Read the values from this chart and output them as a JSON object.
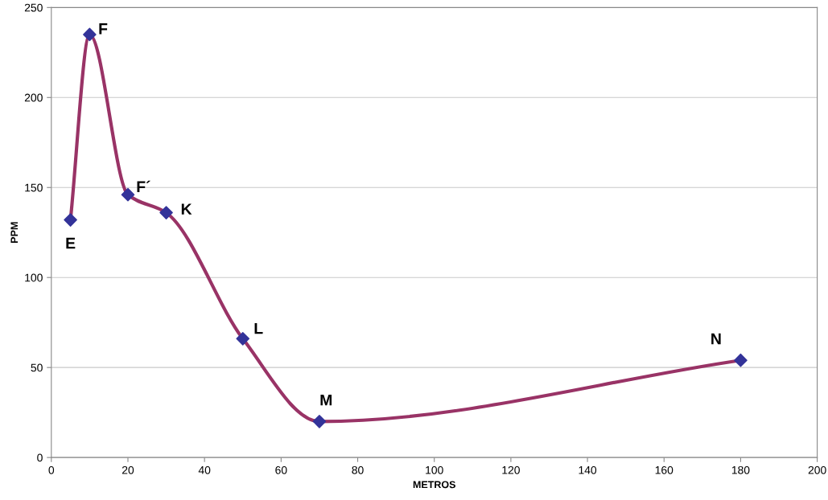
{
  "chart_data": {
    "type": "line",
    "xlabel": "METROS",
    "ylabel": "PPM",
    "x": [
      5,
      10,
      20,
      30,
      50,
      70,
      180
    ],
    "series": [
      {
        "color": "#993366",
        "marker": "none",
        "values": [
          132,
          235,
          146,
          136,
          66,
          20,
          54
        ]
      },
      {
        "type": "scatter",
        "color": "#333399",
        "marker": "diamond",
        "values": [
          132,
          235,
          146,
          136,
          66,
          20,
          54
        ]
      }
    ],
    "xlim": [
      0,
      200
    ],
    "xticks": [
      0,
      20,
      40,
      60,
      80,
      100,
      120,
      140,
      160,
      180,
      200
    ],
    "ylim": [
      0,
      250
    ],
    "yticks": [
      0,
      50,
      100,
      150,
      200,
      250
    ],
    "grid": "y",
    "legend": false,
    "annotations": [
      {
        "text": "E",
        "x": 5,
        "y": 132
      },
      {
        "text": "F",
        "x": 10,
        "y": 235
      },
      {
        "text": "F´",
        "x": 20,
        "y": 146
      },
      {
        "text": "K",
        "x": 30,
        "y": 136
      },
      {
        "text": "L",
        "x": 50,
        "y": 66
      },
      {
        "text": "M",
        "x": 70,
        "y": 20
      },
      {
        "text": "N",
        "x": 180,
        "y": 54
      }
    ]
  }
}
